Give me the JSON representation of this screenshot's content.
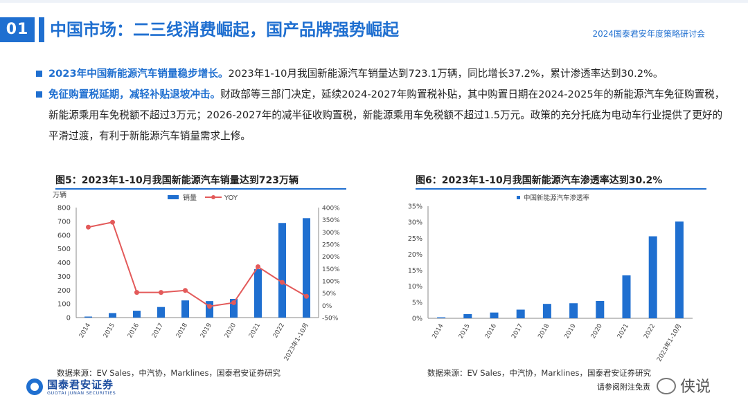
{
  "header": {
    "section_number": "01",
    "title": "中国市场：二三线消费崛起，国产品牌强势崛起",
    "event": "2024国泰君安年度策略研讨会"
  },
  "bullets": [
    {
      "lead": "2023年中国新能源汽车销量稳步增长。",
      "text": "2023年1-10月我国新能源汽车销量达到723.1万辆，同比增长37.2%，累计渗透率达到30.2%。"
    },
    {
      "lead": "免征购置税延期，减轻补贴退坡冲击。",
      "text": "财政部等三部门决定，延续2024-2027年购置税补贴，其中购置日期在2024-2025年的新能源汽车免征购置税，新能源乘用车免税额不超过3万元；2026-2027年的减半征收购置税，新能源乘用车免税额不超过1.5万元。政策的充分托底为电动车行业提供了更好的平滑过渡，有利于新能源汽车销量需求上修。"
    }
  ],
  "chart_data": [
    {
      "type": "bar",
      "title": "图5：2023年1-10月我国新能源汽车销量达到723万辆",
      "ylabel": "万辆",
      "categories": [
        "2014",
        "2015",
        "2016",
        "2017",
        "2018",
        "2019",
        "2020",
        "2021",
        "2022",
        "2023年1-10月"
      ],
      "series": [
        {
          "name": "销量",
          "type": "bar",
          "axis": "left",
          "values": [
            7.5,
            33,
            50,
            77,
            125,
            120,
            136,
            352,
            688,
            723
          ]
        },
        {
          "name": "YOY",
          "type": "line",
          "axis": "right",
          "values": [
            320,
            340,
            53,
            53,
            61,
            -4,
            11,
            158,
            94,
            37
          ]
        }
      ],
      "ylim": [
        0,
        800
      ],
      "yticks": [
        0,
        100,
        200,
        300,
        400,
        500,
        600,
        700,
        800
      ],
      "y2lim": [
        -50,
        400
      ],
      "y2ticks": [
        "-50%",
        "0%",
        "50%",
        "100%",
        "150%",
        "200%",
        "250%",
        "300%",
        "350%",
        "400%"
      ],
      "legend": "top-center",
      "grid": false,
      "colors": {
        "bar": "#1f6fd0",
        "line": "#e35a5a"
      },
      "source": "数据来源：EV Sales，中汽协，Marklines，国泰君安证券研究"
    },
    {
      "type": "bar",
      "title": "图6：2023年1-10月我国新能源汽车渗透率达到30.2%",
      "categories": [
        "2014",
        "2015",
        "2016",
        "2017",
        "2018",
        "2019",
        "2020",
        "2021",
        "2022",
        "2023年1-10月"
      ],
      "series": [
        {
          "name": "中国新能源汽车渗透率",
          "type": "bar",
          "values": [
            0.3,
            1.3,
            1.8,
            2.7,
            4.5,
            4.7,
            5.4,
            13.4,
            25.6,
            30.2
          ]
        }
      ],
      "ylim": [
        0,
        35
      ],
      "yticks": [
        "0%",
        "5%",
        "10%",
        "15%",
        "20%",
        "25%",
        "30%",
        "35%"
      ],
      "legend": "top-center",
      "grid": false,
      "colors": {
        "bar": "#1f6fd0"
      },
      "source": "数据来源：EV Sales，中汽协，Marklines，国泰君安证券研究"
    }
  ],
  "footer": {
    "logo_cn": "国泰君安证券",
    "logo_en": "GUOTAI JUNAN SECURITIES",
    "disclaimer": "请参阅附注免责",
    "watermark": "侠说"
  }
}
